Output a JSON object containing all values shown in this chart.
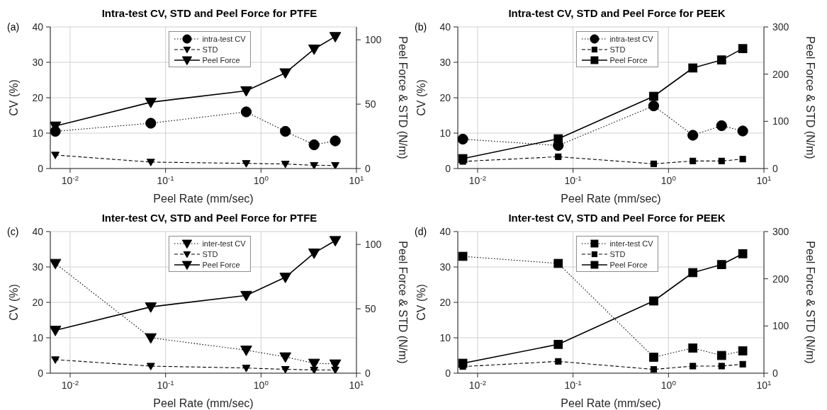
{
  "chart_data": [
    {
      "type": "line",
      "title": "Intra-test CV, STD and Peel Force for PTFE",
      "annotations": [
        "(a)"
      ],
      "xlabel": "Peel Rate (mm/sec)",
      "ylabel": "CV (%)",
      "y2label": "Peel Force & STD (N/m)",
      "log": "x",
      "grid": true,
      "legend": "top",
      "x": [
        0.007,
        0.07,
        0.7,
        1.8,
        3.6,
        6
      ],
      "xlim": [
        0.0062,
        10
      ],
      "xticks": [
        {
          "value": 0.01,
          "label": "10$^{-2}$"
        },
        {
          "value": 0.1,
          "label": "10$^{-1}$"
        },
        {
          "value": 1,
          "label": "10$^{0}$"
        },
        {
          "value": 10,
          "label": "10$^{1}$"
        }
      ],
      "ylim": [
        0,
        40
      ],
      "yticks": [
        0,
        10,
        20,
        30,
        40
      ],
      "y2lim": [
        0,
        110
      ],
      "y2ticks": [
        0,
        50,
        100
      ],
      "series": [
        {
          "name": "intra-test CV",
          "color": "#000000",
          "marker": "circle",
          "line_style": "dotted",
          "values": [
            10.5,
            12.8,
            16,
            10.5,
            6.7,
            7.8
          ]
        },
        {
          "name": "STD",
          "color": "#000000",
          "marker": "triangle",
          "line_style": "dashed",
          "axis": "y2",
          "values": [
            10.5,
            5,
            4,
            3.5,
            2.5,
            2.5
          ]
        },
        {
          "name": "Peel Force",
          "color": "#000000",
          "marker": "triangle",
          "line_style": "solid",
          "axis": "y2",
          "values": [
            33,
            51.5,
            60.4,
            74.3,
            92.8,
            102.5
          ]
        }
      ]
    },
    {
      "type": "line",
      "title": "Intra-test CV, STD and Peel Force for PEEK",
      "annotations": [
        "(b)"
      ],
      "xlabel": "Peel Rate (mm/sec)",
      "ylabel": "CV (%)",
      "y2label": "Peel Force & STD (N/m)",
      "log": "x",
      "grid": true,
      "legend": "top",
      "x": [
        0.007,
        0.07,
        0.7,
        1.8,
        3.6,
        6
      ],
      "xlim": [
        0.0062,
        10
      ],
      "xticks": [
        {
          "value": 0.01,
          "label": "10$^{-2}$"
        },
        {
          "value": 0.1,
          "label": "10$^{-1}$"
        },
        {
          "value": 1,
          "label": "10$^{0}$"
        },
        {
          "value": 10,
          "label": "10$^{1}$"
        }
      ],
      "ylim": [
        0,
        40
      ],
      "yticks": [
        0,
        10,
        20,
        30,
        40
      ],
      "y2lim": [
        0,
        300
      ],
      "y2ticks": [
        0,
        100,
        200,
        300
      ],
      "series": [
        {
          "name": "intra-test CV",
          "color": "#000000",
          "marker": "circle",
          "line_style": "dotted",
          "values": [
            8.3,
            6.5,
            17.7,
            9.4,
            12.1,
            10.6
          ]
        },
        {
          "name": "STD",
          "color": "#000000",
          "marker": "square",
          "line_style": "dashed",
          "axis": "y2",
          "values": [
            15,
            25,
            10,
            16,
            16,
            20
          ]
        },
        {
          "name": "Peel Force",
          "color": "#000000",
          "marker": "square",
          "line_style": "solid",
          "axis": "y2",
          "values": [
            21,
            63,
            153,
            213,
            230,
            254
          ]
        }
      ]
    },
    {
      "type": "line",
      "title": "Inter-test CV, STD and Peel Force for PTFE",
      "annotations": [
        "(c)"
      ],
      "xlabel": "Peel Rate (mm/sec)",
      "ylabel": "CV (%)",
      "y2label": "Peel Force & STD (N/m)",
      "log": "x",
      "grid": true,
      "legend": "top",
      "x": [
        0.007,
        0.07,
        0.7,
        1.8,
        3.6,
        6
      ],
      "xlim": [
        0.0062,
        10
      ],
      "xticks": [
        {
          "value": 0.01,
          "label": "10$^{-2}$"
        },
        {
          "value": 0.1,
          "label": "10$^{-1}$"
        },
        {
          "value": 1,
          "label": "10$^{0}$"
        },
        {
          "value": 10,
          "label": "10$^{1}$"
        }
      ],
      "ylim": [
        0,
        40
      ],
      "yticks": [
        0,
        10,
        20,
        30,
        40
      ],
      "y2lim": [
        0,
        110
      ],
      "y2ticks": [
        0,
        50,
        100
      ],
      "series": [
        {
          "name": "inter-test CV",
          "color": "#000000",
          "marker": "triangle",
          "line_style": "dotted",
          "values": [
            31,
            10,
            6.5,
            4.6,
            2.8,
            2.6
          ]
        },
        {
          "name": "STD",
          "color": "#000000",
          "marker": "triangle",
          "line_style": "dashed",
          "axis": "y2",
          "values": [
            10.5,
            5.5,
            4,
            3,
            2.5,
            2.5
          ]
        },
        {
          "name": "Peel Force",
          "color": "#000000",
          "marker": "triangle",
          "line_style": "solid",
          "axis": "y2",
          "values": [
            33.3,
            51.5,
            60.4,
            74.5,
            93.3,
            103
          ]
        }
      ]
    },
    {
      "type": "line",
      "title": "Inter-test CV, STD and Peel Force for PEEK",
      "annotations": [
        "(d)"
      ],
      "xlabel": "Peel Rate (mm/sec)",
      "ylabel": "CV (%)",
      "y2label": "Peel Force & STD (N/m)",
      "log": "x",
      "grid": true,
      "legend": "top",
      "x": [
        0.007,
        0.07,
        0.7,
        1.8,
        3.6,
        6
      ],
      "xlim": [
        0.0062,
        10
      ],
      "xticks": [
        {
          "value": 0.01,
          "label": "10$^{-2}$"
        },
        {
          "value": 0.1,
          "label": "10$^{-1}$"
        },
        {
          "value": 1,
          "label": "10$^{0}$"
        },
        {
          "value": 10,
          "label": "10$^{1}$"
        }
      ],
      "ylim": [
        0,
        40
      ],
      "yticks": [
        0,
        10,
        20,
        30,
        40
      ],
      "y2lim": [
        0,
        300
      ],
      "y2ticks": [
        0,
        100,
        200,
        300
      ],
      "series": [
        {
          "name": "inter-test CV",
          "color": "#000000",
          "marker": "square",
          "line_style": "dotted",
          "values": [
            33,
            31,
            4.5,
            7.1,
            5,
            6.3
          ]
        },
        {
          "name": "STD",
          "color": "#000000",
          "marker": "square",
          "line_style": "dashed",
          "axis": "y2",
          "values": [
            14,
            25,
            8,
            15,
            15,
            19
          ]
        },
        {
          "name": "Peel Force",
          "color": "#000000",
          "marker": "square",
          "line_style": "solid",
          "axis": "y2",
          "values": [
            21,
            61,
            153,
            213,
            230,
            253
          ]
        }
      ]
    }
  ]
}
